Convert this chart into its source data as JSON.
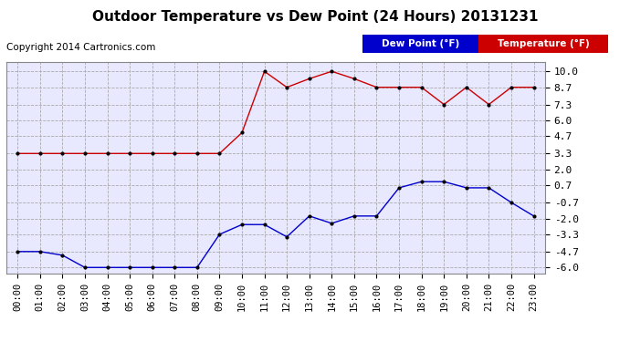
{
  "title": "Outdoor Temperature vs Dew Point (24 Hours) 20131231",
  "copyright": "Copyright 2014 Cartronics.com",
  "background_color": "#ffffff",
  "plot_background": "#e8e8ff",
  "grid_color": "#aaaaaa",
  "hours": [
    "00:00",
    "01:00",
    "02:00",
    "03:00",
    "04:00",
    "05:00",
    "06:00",
    "07:00",
    "08:00",
    "09:00",
    "10:00",
    "11:00",
    "12:00",
    "13:00",
    "14:00",
    "15:00",
    "16:00",
    "17:00",
    "18:00",
    "19:00",
    "20:00",
    "21:00",
    "22:00",
    "23:00"
  ],
  "temperature": [
    3.3,
    3.3,
    3.3,
    3.3,
    3.3,
    3.3,
    3.3,
    3.3,
    3.3,
    3.3,
    5.0,
    10.0,
    8.7,
    9.4,
    10.0,
    9.4,
    8.7,
    8.7,
    8.7,
    7.3,
    8.7,
    7.3,
    8.7,
    8.7
  ],
  "dew_point": [
    -4.7,
    -4.7,
    -5.0,
    -6.0,
    -6.0,
    -6.0,
    -6.0,
    -6.0,
    -6.0,
    -3.3,
    -2.5,
    -2.5,
    -3.5,
    -1.8,
    -2.4,
    -1.8,
    -1.8,
    0.5,
    1.0,
    1.0,
    0.5,
    0.5,
    -0.7,
    -1.8
  ],
  "temp_color": "#cc0000",
  "dew_color": "#0000cc",
  "marker_size": 4,
  "ylim_min": -6.5,
  "ylim_max": 10.8,
  "yticks": [
    -6.0,
    -4.7,
    -3.3,
    -2.0,
    -0.7,
    0.7,
    2.0,
    3.3,
    4.7,
    6.0,
    7.3,
    8.7,
    10.0
  ],
  "legend_dew_bg": "#0000cc",
  "legend_temp_bg": "#cc0000",
  "legend_text_color": "#ffffff",
  "title_fontsize": 11,
  "copyright_fontsize": 7.5,
  "tick_fontsize": 7.5,
  "ytick_fontsize": 8
}
